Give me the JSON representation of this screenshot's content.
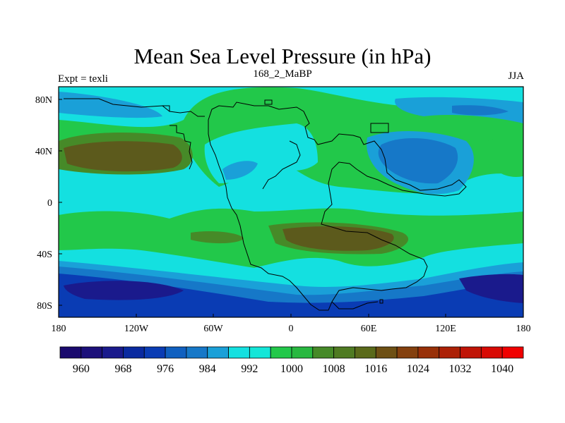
{
  "title": "Mean Sea Level Pressure (in hPa)",
  "subtitle_left": "Expt = texli",
  "subtitle_center": "168_2_MaBP",
  "subtitle_right": "JJA",
  "x_ticks": [
    "180",
    "120W",
    "60W",
    "0",
    "60E",
    "120E",
    "180"
  ],
  "y_ticks": [
    "80N",
    "40N",
    "0",
    "40S",
    "80S"
  ],
  "colorbar_labels": [
    "960",
    "968",
    "976",
    "984",
    "992",
    "1000",
    "1008",
    "1016",
    "1024",
    "1032",
    "1040"
  ],
  "colorbar_colors": [
    "#1a0a6e",
    "#1c107a",
    "#1a1a8c",
    "#0a2aa0",
    "#0a3cb4",
    "#1060c0",
    "#1678c8",
    "#1aa0d8",
    "#14e0e0",
    "#14e6d8",
    "#22c84a",
    "#28b840",
    "#468a28",
    "#4f7b22",
    "#5a6a1a",
    "#6e5014",
    "#84400e",
    "#983008",
    "#ac2006",
    "#c01406",
    "#d80a04",
    "#f00000"
  ],
  "legend_colors": {
    "p996": "#14e0e0",
    "p1004": "#22c84a",
    "p1012": "#468a28",
    "p1016": "#5c5a1c",
    "p988": "#1aa0d8",
    "p984": "#1678c8",
    "p980": "#0a3cb4",
    "p976": "#1a1a8c"
  }
}
